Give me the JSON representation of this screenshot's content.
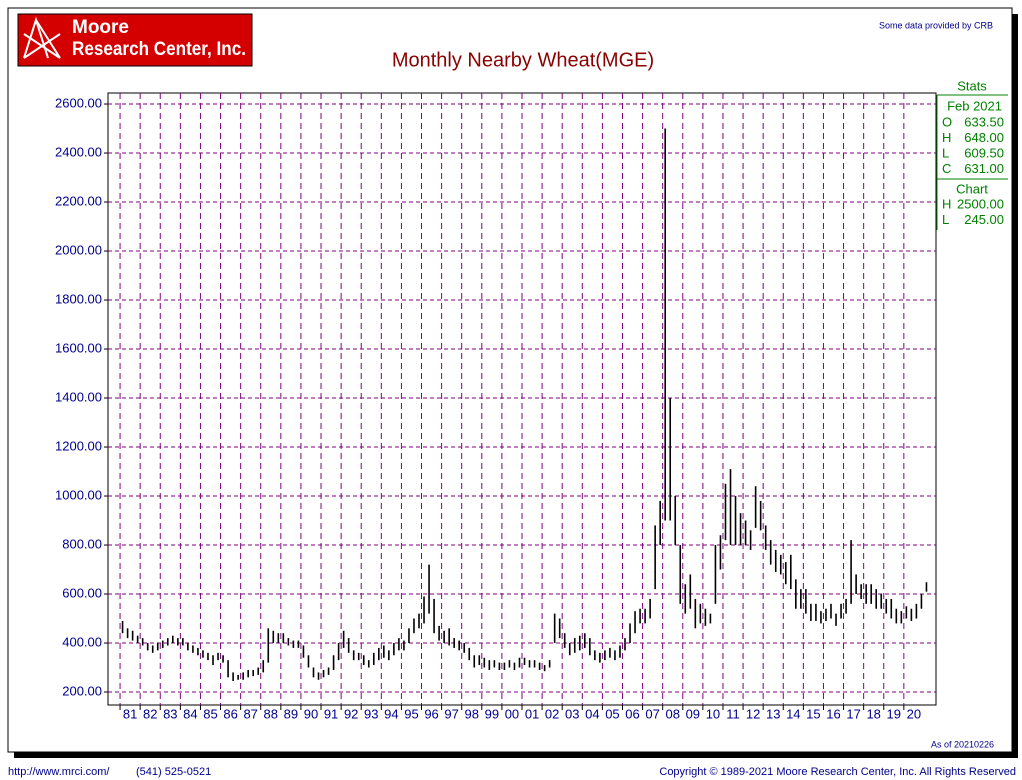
{
  "header": {
    "logo": [
      "Moore",
      "Research Center, Inc."
    ],
    "credit": "Some data provided by CRB",
    "as_of": "As of 20210226"
  },
  "footer": {
    "url": "http://www.mrci.com/",
    "phone": "(541) 525-0521",
    "copyright": "Copyright © 1989-2021 Moore Research Center, Inc. All Rights Reserved"
  },
  "stats": {
    "title": "Stats",
    "date": "Feb 2021",
    "rows": [
      [
        "O",
        "633.50"
      ],
      [
        "H",
        "648.00"
      ],
      [
        "L",
        "609.50"
      ],
      [
        "C",
        "631.00"
      ]
    ],
    "chart_title": "Chart",
    "chart_rows": [
      [
        "H",
        "2500.00"
      ],
      [
        "L",
        "245.00"
      ]
    ]
  },
  "chart_data": {
    "type": "hilo",
    "title": "Monthly Nearby Wheat(MGE)",
    "color": "#000000",
    "grid": true,
    "grid_color": "#800080",
    "xlim": [
      1980.4,
      2021.6
    ],
    "ylim": [
      147,
      2645
    ],
    "yticks": [
      {
        "value": 200,
        "label": "200.00"
      },
      {
        "value": 400,
        "label": "400.00"
      },
      {
        "value": 600,
        "label": "600.00"
      },
      {
        "value": 800,
        "label": "800.00"
      },
      {
        "value": 1000,
        "label": "1000.00"
      },
      {
        "value": 1200,
        "label": "1200.00"
      },
      {
        "value": 1400,
        "label": "1400.00"
      },
      {
        "value": 1600,
        "label": "1600.00"
      },
      {
        "value": 1800,
        "label": "1800.00"
      },
      {
        "value": 2000,
        "label": "2000.00"
      },
      {
        "value": 2200,
        "label": "2200.00"
      },
      {
        "value": 2400,
        "label": "2400.00"
      },
      {
        "value": 2600,
        "label": "2600.00"
      }
    ],
    "xticks": [
      {
        "value": 1981,
        "label": "81"
      },
      {
        "value": 1982,
        "label": "82"
      },
      {
        "value": 1983,
        "label": "83"
      },
      {
        "value": 1984,
        "label": "84"
      },
      {
        "value": 1985,
        "label": "85"
      },
      {
        "value": 1986,
        "label": "86"
      },
      {
        "value": 1987,
        "label": "87"
      },
      {
        "value": 1988,
        "label": "88"
      },
      {
        "value": 1989,
        "label": "89"
      },
      {
        "value": 1990,
        "label": "90"
      },
      {
        "value": 1991,
        "label": "91"
      },
      {
        "value": 1992,
        "label": "92"
      },
      {
        "value": 1993,
        "label": "93"
      },
      {
        "value": 1994,
        "label": "94"
      },
      {
        "value": 1995,
        "label": "95"
      },
      {
        "value": 1996,
        "label": "96"
      },
      {
        "value": 1997,
        "label": "97"
      },
      {
        "value": 1998,
        "label": "98"
      },
      {
        "value": 1999,
        "label": "99"
      },
      {
        "value": 2000,
        "label": "00"
      },
      {
        "value": 2001,
        "label": "01"
      },
      {
        "value": 2002,
        "label": "02"
      },
      {
        "value": 2003,
        "label": "03"
      },
      {
        "value": 2004,
        "label": "04"
      },
      {
        "value": 2005,
        "label": "05"
      },
      {
        "value": 2006,
        "label": "06"
      },
      {
        "value": 2007,
        "label": "07"
      },
      {
        "value": 2008,
        "label": "08"
      },
      {
        "value": 2009,
        "label": "09"
      },
      {
        "value": 2010,
        "label": "10"
      },
      {
        "value": 2011,
        "label": "11"
      },
      {
        "value": 2012,
        "label": "12"
      },
      {
        "value": 2013,
        "label": "13"
      },
      {
        "value": 2014,
        "label": "14"
      },
      {
        "value": 2015,
        "label": "15"
      },
      {
        "value": 2016,
        "label": "16"
      },
      {
        "value": 2017,
        "label": "17"
      },
      {
        "value": 2018,
        "label": "18"
      },
      {
        "value": 2019,
        "label": "19"
      },
      {
        "value": 2020,
        "label": "20"
      }
    ],
    "x": [
      1981,
      1981.25,
      1981.5,
      1981.75,
      1982,
      1982.25,
      1982.5,
      1982.75,
      1983,
      1983.25,
      1983.5,
      1983.75,
      1984,
      1984.25,
      1984.5,
      1984.75,
      1985,
      1985.25,
      1985.5,
      1985.75,
      1986,
      1986.25,
      1986.5,
      1986.75,
      1987,
      1987.25,
      1987.5,
      1987.75,
      1988,
      1988.25,
      1988.5,
      1988.75,
      1989,
      1989.25,
      1989.5,
      1989.75,
      1990,
      1990.25,
      1990.5,
      1990.75,
      1991,
      1991.25,
      1991.5,
      1991.75,
      1992,
      1992.25,
      1992.5,
      1992.75,
      1993,
      1993.25,
      1993.5,
      1993.75,
      1994,
      1994.25,
      1994.5,
      1994.75,
      1995,
      1995.25,
      1995.5,
      1995.75,
      1996,
      1996.25,
      1996.5,
      1996.75,
      1997,
      1997.25,
      1997.5,
      1997.75,
      1998,
      1998.25,
      1998.5,
      1998.75,
      1999,
      1999.25,
      1999.5,
      1999.75,
      2000,
      2000.25,
      2000.5,
      2000.75,
      2001,
      2001.25,
      2001.5,
      2001.75,
      2002,
      2002.25,
      2002.5,
      2002.75,
      2003,
      2003.25,
      2003.5,
      2003.75,
      2004,
      2004.25,
      2004.5,
      2004.75,
      2005,
      2005.25,
      2005.5,
      2005.75,
      2006,
      2006.25,
      2006.5,
      2006.75,
      2007,
      2007.25,
      2007.5,
      2007.75,
      2008,
      2008.25,
      2008.5,
      2008.75,
      2009,
      2009.25,
      2009.5,
      2009.75,
      2010,
      2010.25,
      2010.5,
      2010.75,
      2011,
      2011.25,
      2011.5,
      2011.75,
      2012,
      2012.25,
      2012.5,
      2012.75,
      2013,
      2013.25,
      2013.5,
      2013.75,
      2014,
      2014.25,
      2014.5,
      2014.75,
      2015,
      2015.25,
      2015.5,
      2015.75,
      2016,
      2016.25,
      2016.5,
      2016.75,
      2017,
      2017.25,
      2017.5,
      2017.75,
      2018,
      2018.25,
      2018.5,
      2018.75,
      2019,
      2019.25,
      2019.5,
      2019.75,
      2020,
      2020.25,
      2020.5,
      2020.75,
      2021
    ],
    "high": [
      490,
      460,
      450,
      430,
      420,
      400,
      390,
      400,
      410,
      420,
      430,
      420,
      420,
      400,
      390,
      380,
      370,
      360,
      350,
      360,
      350,
      330,
      280,
      270,
      280,
      290,
      290,
      300,
      330,
      460,
      450,
      440,
      440,
      420,
      410,
      410,
      390,
      350,
      300,
      280,
      290,
      300,
      350,
      400,
      450,
      420,
      370,
      360,
      350,
      330,
      360,
      380,
      390,
      370,
      400,
      420,
      410,
      460,
      500,
      520,
      590,
      720,
      580,
      470,
      450,
      460,
      420,
      410,
      400,
      380,
      350,
      350,
      340,
      330,
      330,
      320,
      320,
      330,
      320,
      340,
      340,
      330,
      330,
      320,
      310,
      330,
      520,
      500,
      440,
      400,
      420,
      430,
      440,
      420,
      370,
      360,
      370,
      380,
      370,
      390,
      420,
      480,
      530,
      540,
      540,
      580,
      880,
      980,
      2500,
      1400,
      1000,
      800,
      640,
      680,
      580,
      560,
      540,
      520,
      800,
      840,
      1050,
      1110,
      1000,
      930,
      900,
      860,
      1040,
      980,
      880,
      820,
      780,
      760,
      730,
      760,
      660,
      620,
      620,
      560,
      560,
      530,
      540,
      560,
      520,
      560,
      580,
      820,
      680,
      640,
      640,
      640,
      620,
      600,
      580,
      580,
      540,
      530,
      550,
      540,
      560,
      600,
      648
    ],
    "low": [
      440,
      420,
      410,
      400,
      390,
      370,
      360,
      370,
      380,
      390,
      400,
      390,
      390,
      370,
      360,
      350,
      340,
      330,
      310,
      330,
      320,
      260,
      245,
      250,
      250,
      260,
      265,
      270,
      280,
      320,
      400,
      400,
      400,
      390,
      380,
      380,
      340,
      300,
      260,
      250,
      260,
      270,
      290,
      330,
      380,
      360,
      330,
      330,
      310,
      300,
      310,
      330,
      340,
      330,
      350,
      370,
      370,
      400,
      440,
      460,
      480,
      520,
      440,
      410,
      400,
      390,
      380,
      370,
      360,
      330,
      300,
      310,
      300,
      290,
      300,
      290,
      290,
      300,
      290,
      300,
      310,
      300,
      300,
      290,
      285,
      300,
      400,
      420,
      380,
      350,
      360,
      370,
      380,
      350,
      330,
      320,
      330,
      340,
      330,
      340,
      370,
      400,
      440,
      480,
      480,
      500,
      620,
      800,
      900,
      900,
      800,
      560,
      520,
      540,
      460,
      480,
      470,
      480,
      560,
      700,
      820,
      800,
      800,
      800,
      800,
      780,
      870,
      860,
      780,
      720,
      690,
      680,
      640,
      620,
      540,
      540,
      520,
      490,
      490,
      480,
      490,
      500,
      470,
      500,
      520,
      560,
      600,
      580,
      560,
      560,
      540,
      540,
      520,
      500,
      480,
      480,
      500,
      490,
      500,
      540,
      609.5
    ]
  }
}
